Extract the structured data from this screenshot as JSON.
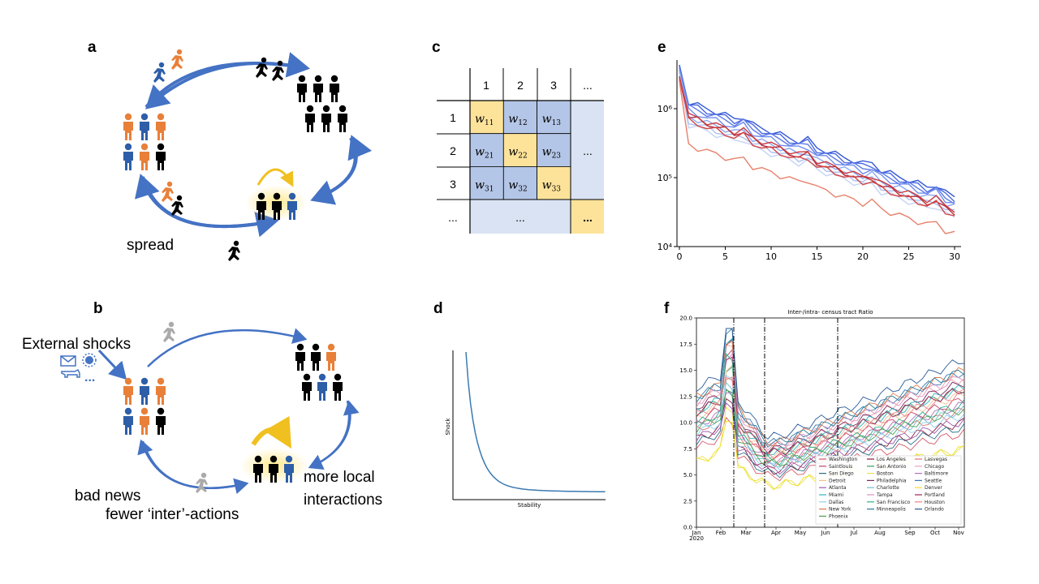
{
  "panel_labels": {
    "a": "a",
    "b": "b",
    "c": "c",
    "d": "d",
    "e": "e",
    "f": "f"
  },
  "panel_a": {
    "spread_label": "spread"
  },
  "panel_b": {
    "external_shocks": "External shocks",
    "ellipsis": "...",
    "bad_news": "bad news",
    "fewer_inter": "fewer ‘inter’-actions",
    "more_local_1": "more local",
    "more_local_2": "interactions"
  },
  "panel_c": {
    "col_headers": [
      "1",
      "2",
      "3",
      "..."
    ],
    "row_headers": [
      "1",
      "2",
      "3",
      "..."
    ],
    "cells": [
      [
        "w",
        "11"
      ],
      [
        "w",
        "12"
      ],
      [
        "w",
        "13"
      ],
      [
        "w",
        "21"
      ],
      [
        "w",
        "22"
      ],
      [
        "w",
        "23"
      ],
      [
        "w",
        "31"
      ],
      [
        "w",
        "32"
      ],
      [
        "w",
        "33"
      ]
    ],
    "ellipsis": "...",
    "colors": {
      "diag": "#fde39a",
      "off": "#b4c6e7",
      "light": "#dae3f3"
    }
  },
  "panel_d": {
    "xlabel": "Stability",
    "ylabel": "Shock",
    "color": "#3a7ab0"
  },
  "panel_e": {
    "xticks": [
      "0",
      "5",
      "10",
      "15",
      "20",
      "25",
      "30"
    ],
    "yticks": [
      "10⁶",
      "10⁵",
      "10⁴"
    ]
  },
  "panel_f": {
    "title": "Inter-/intra- census tract Ratio",
    "yticks": [
      "20.0",
      "17.5",
      "15.0",
      "12.5",
      "10.0",
      "7.5",
      "5.0",
      "2.5",
      "0.0"
    ],
    "xticks": [
      "Jan",
      "Feb",
      "Mar",
      "Apr",
      "May",
      "Jun",
      "Jul",
      "Aug",
      "Sep",
      "Oct",
      "Nov"
    ],
    "year": "2020",
    "legend": [
      [
        "Washington",
        "#d45a6a"
      ],
      [
        "Los Angeles",
        "#8b1a3a"
      ],
      [
        "Lasvegas",
        "#e07070"
      ],
      [
        "Saintlouis",
        "#c4456b"
      ],
      [
        "San Antonio",
        "#3a9a6a"
      ],
      [
        "Chicago",
        "#f0a0b0"
      ],
      [
        "San Diego",
        "#2a6e8a"
      ],
      [
        "Boston",
        "#e8e050"
      ],
      [
        "Baltimore",
        "#b070c0"
      ],
      [
        "Detroit",
        "#f2c090"
      ],
      [
        "Philadelphia",
        "#7a2a5a"
      ],
      [
        "Seattle",
        "#3a7ab0"
      ],
      [
        "Atlanta",
        "#9a5aaa"
      ],
      [
        "Charlotte",
        "#70c0d0"
      ],
      [
        "Denver",
        "#f0e020"
      ],
      [
        "Miami",
        "#30b0c0"
      ],
      [
        "Tampa",
        "#e090c0"
      ],
      [
        "Portland",
        "#a0205a"
      ],
      [
        "Dallas",
        "#90d0f0"
      ],
      [
        "San Francisco",
        "#30b090"
      ],
      [
        "Houston",
        "#f08080"
      ],
      [
        "New York",
        "#e0784a"
      ],
      [
        "Minneapolis",
        "#2a7a9a"
      ],
      [
        "Orlando",
        "#2a5a9a"
      ],
      [
        "Phoenix",
        "#50a050"
      ]
    ]
  }
}
